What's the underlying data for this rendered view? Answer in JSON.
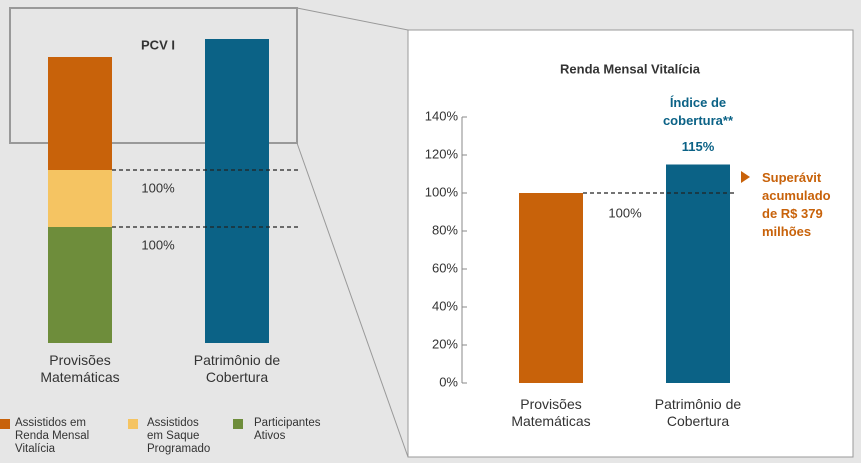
{
  "chart_data": [
    {
      "type": "stacked_bar",
      "title": "PCV I",
      "categories": [
        "Provisões Matemáticas",
        "Patrimônio de Cobertura"
      ],
      "series": [
        {
          "name": "Assistidos em Renda Mensal Vitalícia",
          "color": "#c8620a",
          "values": [
            113,
            null
          ]
        },
        {
          "name": "Assistidos em Saque Programado",
          "color": "#f5c462",
          "values": [
            57,
            null
          ]
        },
        {
          "name": "Participantes Ativos",
          "color": "#6e8d3b",
          "values": [
            116,
            null
          ]
        }
      ],
      "values": [
        null,
        304
      ],
      "color": "#0b6286",
      "ylim": [
        0,
        320
      ],
      "annotations": [
        "100%",
        "100%"
      ]
    },
    {
      "type": "bar",
      "title": "Renda Mensal Vitalícia",
      "categories": [
        "Provisões Matemáticas",
        "Patrimônio de Cobertura"
      ],
      "values": [
        100,
        115
      ],
      "value_labels": [
        null,
        "115%"
      ],
      "colors": [
        "#c8620a",
        "#0b6286"
      ],
      "ylim": [
        0,
        140
      ],
      "yticks": [
        {
          "value": 0,
          "label": "0%"
        },
        {
          "value": 20,
          "label": "20%"
        },
        {
          "value": 40,
          "label": "40%"
        },
        {
          "value": 60,
          "label": "60%"
        },
        {
          "value": 80,
          "label": "80%"
        },
        {
          "value": 100,
          "label": "100%"
        },
        {
          "value": 120,
          "label": "120%"
        },
        {
          "value": 140,
          "label": "140%"
        }
      ],
      "annotations": [
        "Índice de cobertura**",
        "Superávit acumulado de R$ 379 milhões",
        "100%"
      ]
    }
  ]
}
